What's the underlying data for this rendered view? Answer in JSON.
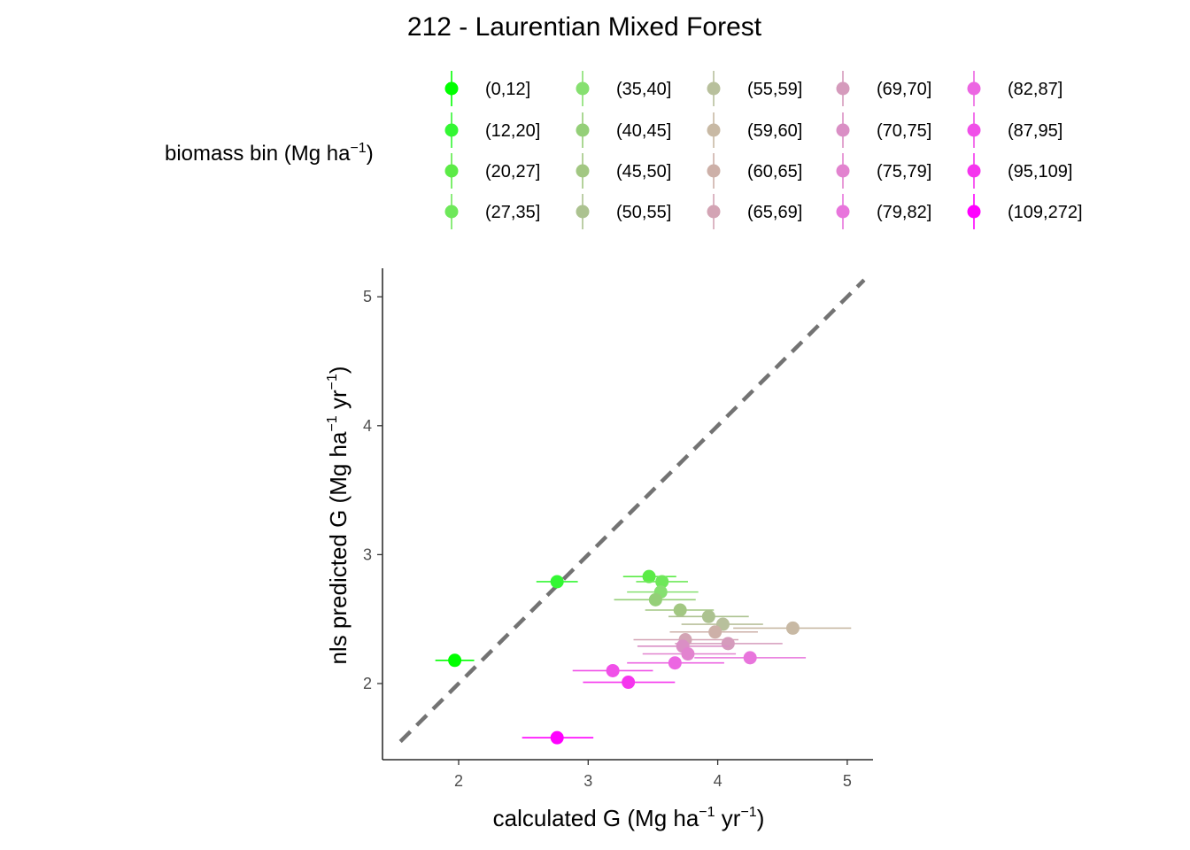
{
  "chart_data": {
    "type": "scatter",
    "title": "212 - Laurentian Mixed Forest",
    "xlabel": {
      "main": "calculated G (Mg ha",
      "sup1": "−1",
      "mid": " yr",
      "sup2": "−1",
      "end": ")"
    },
    "ylabel": {
      "main": "nls predicted G (Mg ha",
      "sup1": "−1",
      "mid": " yr",
      "sup2": "−1",
      "end": ")"
    },
    "legend_title": {
      "main": "biomass bin (Mg ha",
      "sup": "−1",
      "end": ")"
    },
    "xlim": [
      1.45,
      5.2
    ],
    "ylim": [
      1.45,
      5.2
    ],
    "x_ticks": [
      2,
      3,
      4,
      5
    ],
    "y_ticks": [
      2,
      3,
      4,
      5
    ],
    "reference_line": {
      "slope": 1,
      "intercept": 0,
      "from": 1.55,
      "to": 5.13,
      "color": "#737373",
      "style": "dashed"
    },
    "legend_position": "top",
    "grid": false,
    "series": [
      {
        "name": "(0,12]",
        "color": "#00FF00",
        "x": 1.97,
        "y": 2.18,
        "xmin": 1.82,
        "xmax": 2.12
      },
      {
        "name": "(12,20]",
        "color": "#33F733",
        "x": 2.76,
        "y": 2.79,
        "xmin": 2.6,
        "xmax": 2.92
      },
      {
        "name": "(20,27]",
        "color": "#5BEB46",
        "x": 3.47,
        "y": 2.83,
        "xmin": 3.27,
        "xmax": 3.68
      },
      {
        "name": "(27,35]",
        "color": "#6EE85A",
        "x": 3.57,
        "y": 2.79,
        "xmin": 3.37,
        "xmax": 3.77
      },
      {
        "name": "(35,40]",
        "color": "#86E070",
        "x": 3.56,
        "y": 2.71,
        "xmin": 3.3,
        "xmax": 3.85
      },
      {
        "name": "(40,45]",
        "color": "#94CF78",
        "x": 3.52,
        "y": 2.65,
        "xmin": 3.2,
        "xmax": 3.83
      },
      {
        "name": "(45,50]",
        "color": "#A2C782",
        "x": 3.71,
        "y": 2.57,
        "xmin": 3.44,
        "xmax": 3.97
      },
      {
        "name": "(50,55]",
        "color": "#ACC290",
        "x": 3.93,
        "y": 2.52,
        "xmin": 3.62,
        "xmax": 4.24
      },
      {
        "name": "(55,59]",
        "color": "#B8C09C",
        "x": 4.04,
        "y": 2.46,
        "xmin": 3.72,
        "xmax": 4.35
      },
      {
        "name": "(59,60]",
        "color": "#C8B9A4",
        "x": 4.58,
        "y": 2.43,
        "xmin": 4.12,
        "xmax": 5.03
      },
      {
        "name": "(60,65]",
        "color": "#CDB0A8",
        "x": 3.98,
        "y": 2.4,
        "xmin": 3.63,
        "xmax": 4.31
      },
      {
        "name": "(65,69]",
        "color": "#D3A4B4",
        "x": 3.75,
        "y": 2.34,
        "xmin": 3.35,
        "xmax": 4.16
      },
      {
        "name": "(69,70]",
        "color": "#D59BBC",
        "x": 4.08,
        "y": 2.31,
        "xmin": 3.67,
        "xmax": 4.5
      },
      {
        "name": "(70,75]",
        "color": "#DA8FC5",
        "x": 3.73,
        "y": 2.29,
        "xmin": 3.38,
        "xmax": 4.09
      },
      {
        "name": "(75,79]",
        "color": "#E283CF",
        "x": 3.77,
        "y": 2.23,
        "xmin": 3.42,
        "xmax": 4.14
      },
      {
        "name": "(79,82]",
        "color": "#E875DC",
        "x": 4.25,
        "y": 2.2,
        "xmin": 3.82,
        "xmax": 4.68
      },
      {
        "name": "(82,87]",
        "color": "#EC66E2",
        "x": 3.67,
        "y": 2.16,
        "xmin": 3.3,
        "xmax": 4.05
      },
      {
        "name": "(87,95]",
        "color": "#F050E8",
        "x": 3.19,
        "y": 2.1,
        "xmin": 2.88,
        "xmax": 3.5
      },
      {
        "name": "(95,109]",
        "color": "#F535EE",
        "x": 3.31,
        "y": 2.01,
        "xmin": 2.96,
        "xmax": 3.67
      },
      {
        "name": "(109,272]",
        "color": "#FF00FF",
        "x": 2.76,
        "y": 1.58,
        "xmin": 2.49,
        "xmax": 3.04
      }
    ]
  }
}
